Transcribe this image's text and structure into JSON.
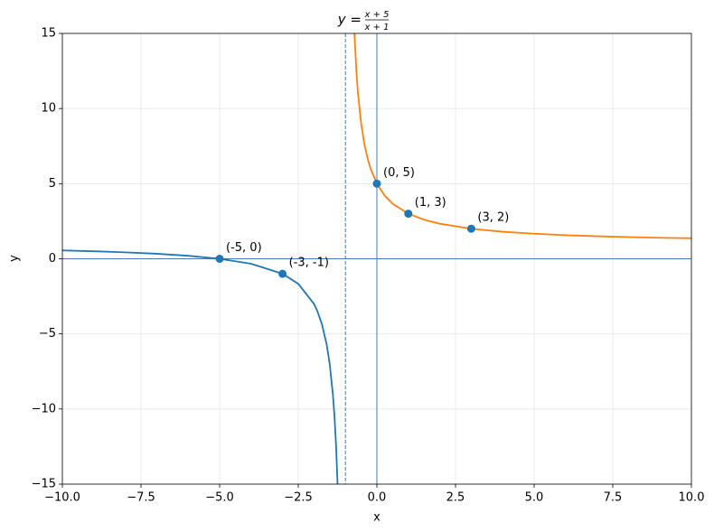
{
  "chart_data": {
    "type": "line",
    "title": {
      "lhs": "y =",
      "numerator": "x + 5",
      "denominator": "x + 1"
    },
    "x_label": "x",
    "y_label": "y",
    "xlim": [
      -10,
      10
    ],
    "ylim": [
      -15,
      15
    ],
    "xticks": [
      {
        "value": -10,
        "label": "−10.0"
      },
      {
        "value": -7.5,
        "label": "−7.5"
      },
      {
        "value": -5,
        "label": "−5.0"
      },
      {
        "value": -2.5,
        "label": "−2.5"
      },
      {
        "value": 0,
        "label": "0.0"
      },
      {
        "value": 2.5,
        "label": "2.5"
      },
      {
        "value": 5,
        "label": "5.0"
      },
      {
        "value": 7.5,
        "label": "7.5"
      },
      {
        "value": 10,
        "label": "10.0"
      }
    ],
    "yticks": [
      {
        "value": -15,
        "label": "−15"
      },
      {
        "value": -10,
        "label": "−10"
      },
      {
        "value": -5,
        "label": "−5"
      },
      0,
      5,
      10,
      15
    ],
    "grid": true,
    "axis_lines": {
      "x": 0,
      "y": 0,
      "color": "#4a78b0"
    },
    "asymptote_x": -1,
    "series": [
      {
        "color": "#1f77b4",
        "x": [
          -10,
          -9,
          -8,
          -7,
          -6,
          -5,
          -4,
          -3,
          -2.5,
          -2,
          -1.9,
          -1.75,
          -1.6,
          -1.5,
          -1.4,
          -1.35,
          -1.3,
          -1.25
        ],
        "values": [
          0.556,
          0.5,
          0.429,
          0.333,
          0.2,
          0,
          -0.333,
          -1,
          -1.667,
          -3,
          -3.444,
          -4.333,
          -5.667,
          -7,
          -9,
          -10.429,
          -12.333,
          -15
        ]
      },
      {
        "color": "#ff7f0e",
        "x": [
          -0.7143,
          -0.65,
          -0.6,
          -0.5,
          -0.4,
          -0.3,
          -0.2,
          0,
          0.25,
          0.5,
          1,
          1.5,
          2,
          3,
          4,
          5,
          6,
          7,
          8,
          9,
          10
        ],
        "values": [
          15,
          12.429,
          11,
          9,
          7.667,
          6.714,
          6,
          5,
          4.2,
          3.667,
          3,
          2.6,
          2.333,
          2,
          1.8,
          1.667,
          1.571,
          1.5,
          1.444,
          1.4,
          1.364
        ]
      }
    ],
    "points": {
      "color": "#1f77b4",
      "x": [
        -5,
        -3,
        0,
        1,
        3
      ],
      "values": [
        0,
        -1,
        5,
        3,
        2
      ],
      "value_labels": [
        "(-5, 0)",
        "(-3, -1)",
        "(0, 5)",
        "(1, 3)",
        "(3, 2)"
      ]
    }
  }
}
